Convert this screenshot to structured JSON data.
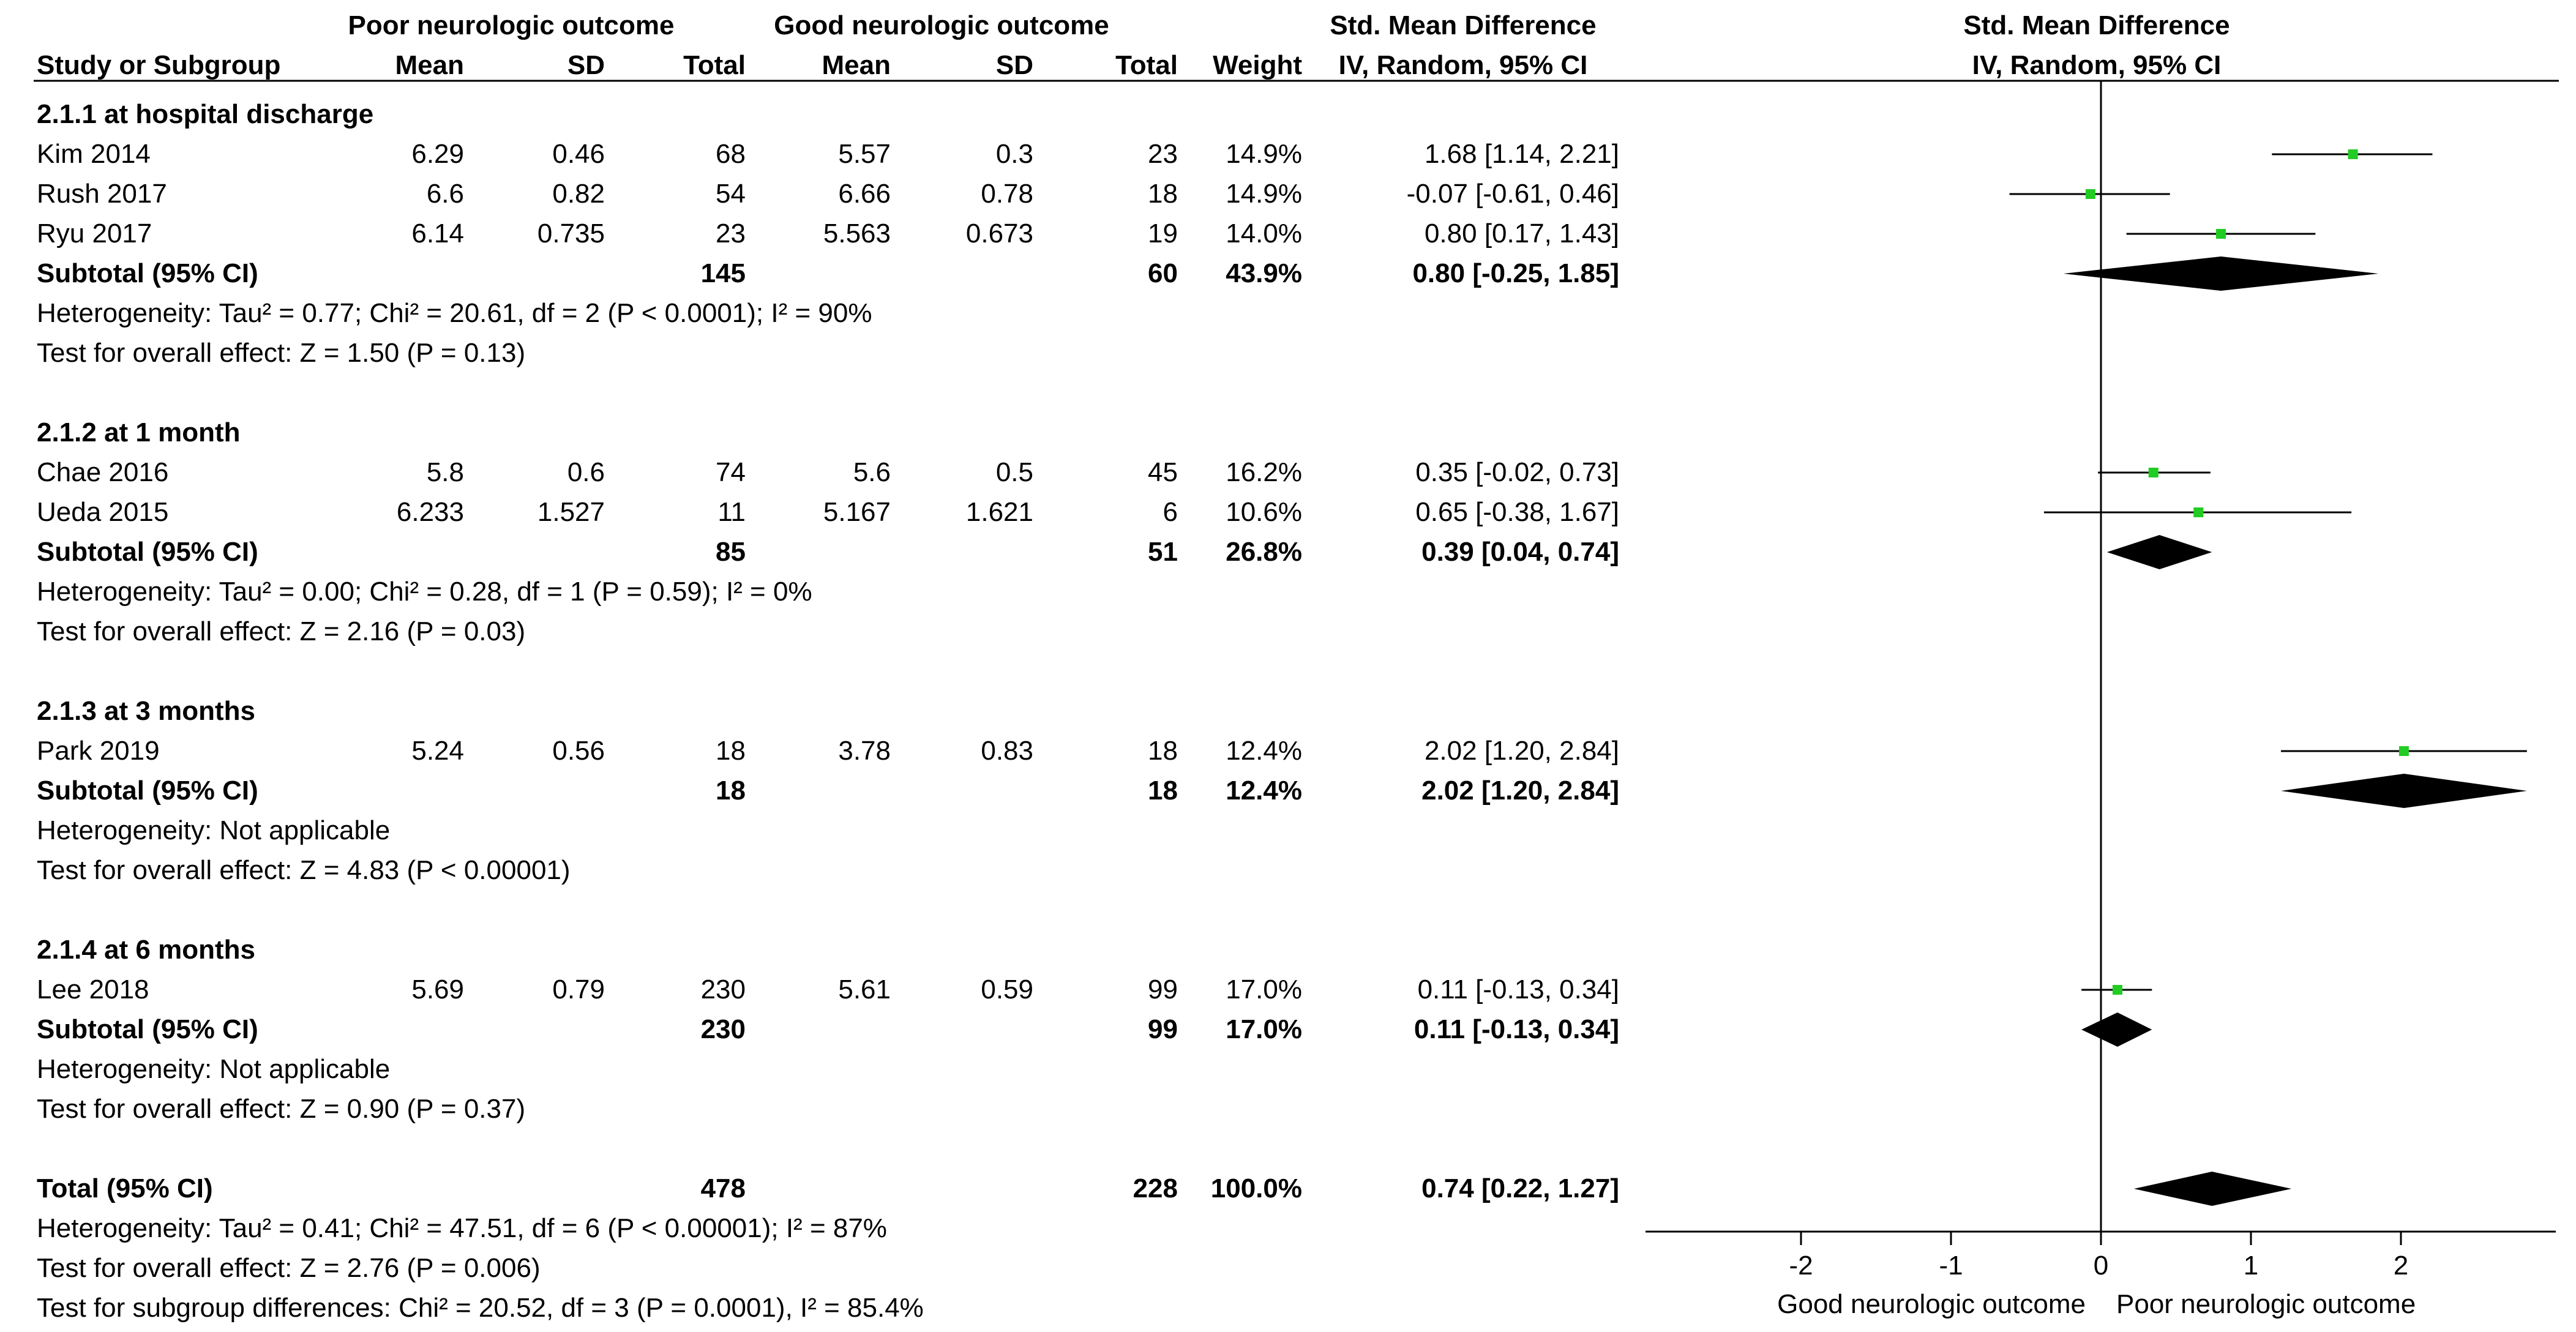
{
  "header": {
    "group1": "Poor neurologic outcome",
    "group2": "Good neurologic outcome",
    "effect_title": "Std. Mean Difference",
    "plot_title": "Std. Mean Difference",
    "plot_method": "IV, Random, 95% CI",
    "columns": {
      "study": "Study or Subgroup",
      "mean1": "Mean",
      "sd1": "SD",
      "total1": "Total",
      "mean2": "Mean",
      "sd2": "SD",
      "total2": "Total",
      "weight": "Weight",
      "ci": "IV, Random, 95% CI"
    }
  },
  "axis_labels": {
    "left": "Good neurologic outcome",
    "right": "Poor neurologic outcome"
  },
  "chart_data": {
    "type": "forest",
    "x_range": [
      -3,
      3
    ],
    "ticks": [
      {
        "v": -2,
        "label": "-2"
      },
      {
        "v": -1,
        "label": "-1"
      },
      {
        "v": 0,
        "label": "0"
      },
      {
        "v": 1,
        "label": "1"
      },
      {
        "v": 2,
        "label": "2"
      }
    ],
    "colors": {
      "square": "#22cc22",
      "diamond": "#000000"
    },
    "groups": [
      {
        "title": "2.1.1 at hospital discharge",
        "studies": [
          {
            "name": "Kim 2014",
            "mean1": "6.29",
            "sd1": "0.46",
            "total1": "68",
            "mean2": "5.57",
            "sd2": "0.3",
            "total2": "23",
            "weight": "14.9%",
            "ci_text": "1.68 [1.14, 2.21]",
            "est": 1.68,
            "low": 1.14,
            "high": 2.21
          },
          {
            "name": "Rush 2017",
            "mean1": "6.6",
            "sd1": "0.82",
            "total1": "54",
            "mean2": "6.66",
            "sd2": "0.78",
            "total2": "18",
            "weight": "14.9%",
            "ci_text": "-0.07 [-0.61, 0.46]",
            "est": -0.07,
            "low": -0.61,
            "high": 0.46
          },
          {
            "name": "Ryu 2017",
            "mean1": "6.14",
            "sd1": "0.735",
            "total1": "23",
            "mean2": "5.563",
            "sd2": "0.673",
            "total2": "19",
            "weight": "14.0%",
            "ci_text": "0.80 [0.17, 1.43]",
            "est": 0.8,
            "low": 0.17,
            "high": 1.43
          }
        ],
        "subtotal": {
          "label": "Subtotal (95% CI)",
          "total1": "145",
          "total2": "60",
          "weight": "43.9%",
          "ci_text": "0.80 [-0.25, 1.85]",
          "est": 0.8,
          "low": -0.25,
          "high": 1.85
        },
        "heterogeneity": "Heterogeneity: Tau² = 0.77; Chi² = 20.61, df = 2 (P < 0.0001); I² = 90%",
        "overall": "Test for overall effect: Z = 1.50 (P = 0.13)"
      },
      {
        "title": "2.1.2 at 1 month",
        "studies": [
          {
            "name": "Chae 2016",
            "mean1": "5.8",
            "sd1": "0.6",
            "total1": "74",
            "mean2": "5.6",
            "sd2": "0.5",
            "total2": "45",
            "weight": "16.2%",
            "ci_text": "0.35 [-0.02, 0.73]",
            "est": 0.35,
            "low": -0.02,
            "high": 0.73
          },
          {
            "name": "Ueda 2015",
            "mean1": "6.233",
            "sd1": "1.527",
            "total1": "11",
            "mean2": "5.167",
            "sd2": "1.621",
            "total2": "6",
            "weight": "10.6%",
            "ci_text": "0.65 [-0.38, 1.67]",
            "est": 0.65,
            "low": -0.38,
            "high": 1.67
          }
        ],
        "subtotal": {
          "label": "Subtotal (95% CI)",
          "total1": "85",
          "total2": "51",
          "weight": "26.8%",
          "ci_text": "0.39 [0.04, 0.74]",
          "est": 0.39,
          "low": 0.04,
          "high": 0.74
        },
        "heterogeneity": "Heterogeneity: Tau² = 0.00; Chi² = 0.28, df = 1 (P = 0.59); I² = 0%",
        "overall": "Test for overall effect: Z = 2.16 (P = 0.03)"
      },
      {
        "title": "2.1.3 at 3 months",
        "studies": [
          {
            "name": "Park 2019",
            "mean1": "5.24",
            "sd1": "0.56",
            "total1": "18",
            "mean2": "3.78",
            "sd2": "0.83",
            "total2": "18",
            "weight": "12.4%",
            "ci_text": "2.02 [1.20, 2.84]",
            "est": 2.02,
            "low": 1.2,
            "high": 2.84
          }
        ],
        "subtotal": {
          "label": "Subtotal (95% CI)",
          "total1": "18",
          "total2": "18",
          "weight": "12.4%",
          "ci_text": "2.02 [1.20, 2.84]",
          "est": 2.02,
          "low": 1.2,
          "high": 2.84
        },
        "heterogeneity": "Heterogeneity: Not applicable",
        "overall": "Test for overall effect: Z = 4.83 (P < 0.00001)"
      },
      {
        "title": "2.1.4 at 6 months",
        "studies": [
          {
            "name": "Lee 2018",
            "mean1": "5.69",
            "sd1": "0.79",
            "total1": "230",
            "mean2": "5.61",
            "sd2": "0.59",
            "total2": "99",
            "weight": "17.0%",
            "ci_text": "0.11 [-0.13, 0.34]",
            "est": 0.11,
            "low": -0.13,
            "high": 0.34
          }
        ],
        "subtotal": {
          "label": "Subtotal (95% CI)",
          "total1": "230",
          "total2": "99",
          "weight": "17.0%",
          "ci_text": "0.11 [-0.13, 0.34]",
          "est": 0.11,
          "low": -0.13,
          "high": 0.34
        },
        "heterogeneity": "Heterogeneity: Not applicable",
        "overall": "Test for overall effect: Z = 0.90 (P = 0.37)"
      }
    ],
    "total": {
      "label": "Total (95% CI)",
      "total1": "478",
      "total2": "228",
      "weight": "100.0%",
      "ci_text": "0.74 [0.22, 1.27]",
      "est": 0.74,
      "low": 0.22,
      "high": 1.27
    },
    "total_heterogeneity": "Heterogeneity: Tau² = 0.41; Chi² = 47.51, df = 6 (P < 0.00001); I² = 87%",
    "total_overall": "Test for overall effect: Z = 2.76 (P = 0.006)",
    "subgroup_differences": "Test for subgroup differences: Chi² = 20.52, df = 3 (P = 0.0001), I² = 85.4%"
  }
}
